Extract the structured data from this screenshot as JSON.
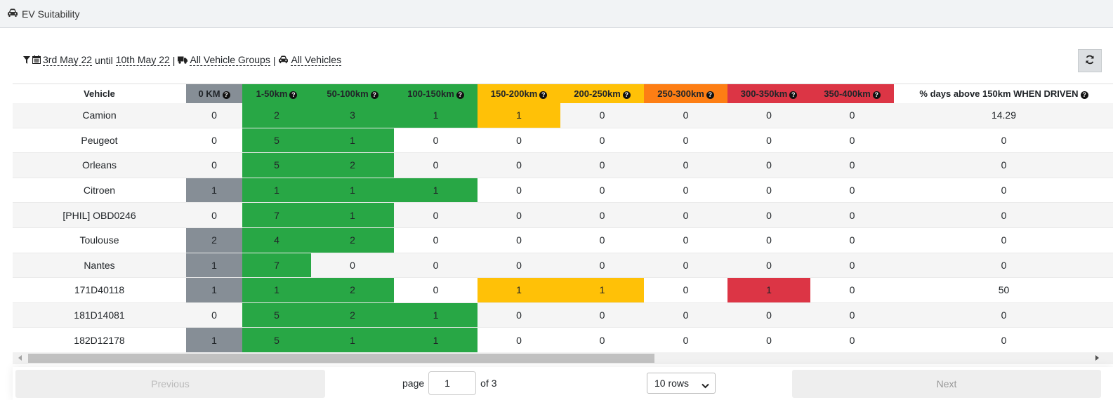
{
  "app": {
    "title": "EV Suitability",
    "icon": "car-icon"
  },
  "filters": {
    "date_from": "3rd May 22",
    "until_label": "until",
    "date_to": "10th May 22",
    "separator": "|",
    "groups": "All Vehicle Groups",
    "vehicles": "All Vehicles"
  },
  "colors": {
    "grey": "#868e96",
    "green": "#28a745",
    "yellow": "#ffc107",
    "orange": "#fd7e14",
    "red": "#dc3545"
  },
  "table": {
    "columns": [
      {
        "label": "Vehicle",
        "color": "",
        "help": false
      },
      {
        "label": "0 KM",
        "color": "grey",
        "help": true
      },
      {
        "label": "1-50km",
        "color": "green",
        "help": true
      },
      {
        "label": "50-100km",
        "color": "green",
        "help": true
      },
      {
        "label": "100-150km",
        "color": "green",
        "help": true
      },
      {
        "label": "150-200km",
        "color": "yellow",
        "help": true
      },
      {
        "label": "200-250km",
        "color": "yellow",
        "help": true
      },
      {
        "label": "250-300km",
        "color": "orange",
        "help": true
      },
      {
        "label": "300-350km",
        "color": "red",
        "help": true
      },
      {
        "label": "350-400km",
        "color": "red",
        "help": true
      },
      {
        "label": "% days above 150km WHEN DRIVEN",
        "color": "",
        "help": true
      }
    ],
    "rows": [
      {
        "vehicle": "Camion",
        "values": [
          "0",
          "2",
          "3",
          "1",
          "1",
          "0",
          "0",
          "0",
          "0",
          "14.29"
        ]
      },
      {
        "vehicle": "Peugeot",
        "values": [
          "0",
          "5",
          "1",
          "0",
          "0",
          "0",
          "0",
          "0",
          "0",
          "0"
        ]
      },
      {
        "vehicle": "Orleans",
        "values": [
          "0",
          "5",
          "2",
          "0",
          "0",
          "0",
          "0",
          "0",
          "0",
          "0"
        ]
      },
      {
        "vehicle": "Citroen",
        "values": [
          "1",
          "1",
          "1",
          "1",
          "0",
          "0",
          "0",
          "0",
          "0",
          "0"
        ]
      },
      {
        "vehicle": "[PHIL] OBD0246",
        "values": [
          "0",
          "7",
          "1",
          "0",
          "0",
          "0",
          "0",
          "0",
          "0",
          "0"
        ]
      },
      {
        "vehicle": "Toulouse",
        "values": [
          "2",
          "4",
          "2",
          "0",
          "0",
          "0",
          "0",
          "0",
          "0",
          "0"
        ]
      },
      {
        "vehicle": "Nantes",
        "values": [
          "1",
          "7",
          "0",
          "0",
          "0",
          "0",
          "0",
          "0",
          "0",
          "0"
        ]
      },
      {
        "vehicle": "171D40118",
        "values": [
          "1",
          "1",
          "2",
          "0",
          "1",
          "1",
          "0",
          "1",
          "0",
          "50"
        ]
      },
      {
        "vehicle": "181D14081",
        "values": [
          "0",
          "5",
          "2",
          "1",
          "0",
          "0",
          "0",
          "0",
          "0",
          "0"
        ]
      },
      {
        "vehicle": "182D12178",
        "values": [
          "1",
          "5",
          "1",
          "1",
          "0",
          "0",
          "0",
          "0",
          "0",
          "0"
        ]
      }
    ]
  },
  "pagination": {
    "previous_label": "Previous",
    "next_label": "Next",
    "page_label": "page",
    "current_page": "1",
    "of_label": "of 3",
    "rows_option": "10 rows"
  }
}
